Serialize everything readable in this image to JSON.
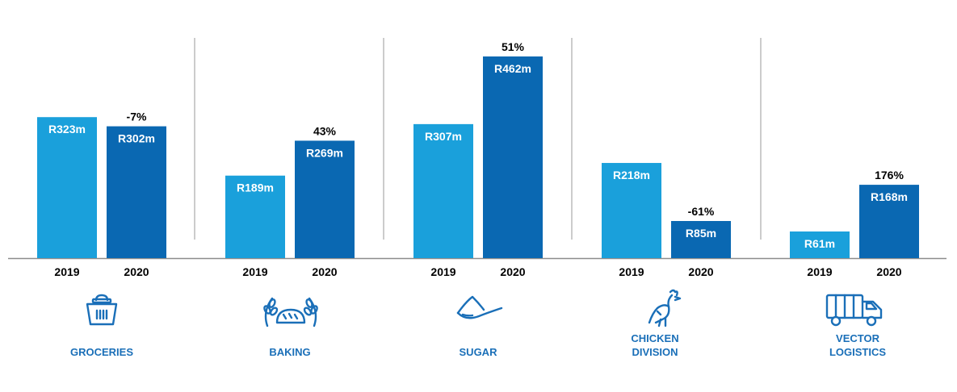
{
  "colors": {
    "y2019": "#1aa0db",
    "y2020": "#0a68b2",
    "icon": "#1a6fb8",
    "axis": "#8c8c8c"
  },
  "chart_data": {
    "type": "bar",
    "categories": [
      "GROCERIES",
      "BAKING",
      "SUGAR",
      "CHICKEN DIVISION",
      "VECTOR LOGISTICS"
    ],
    "category_lines": [
      [
        "GROCERIES"
      ],
      [
        "BAKING"
      ],
      [
        "SUGAR"
      ],
      [
        "CHICKEN",
        "DIVISION"
      ],
      [
        "VECTOR",
        "LOGISTICS"
      ]
    ],
    "series": [
      {
        "name": "2019",
        "values": [
          323,
          189,
          307,
          218,
          61
        ],
        "labels": [
          "R323m",
          "R189m",
          "R307m",
          "R218m",
          "R61m"
        ]
      },
      {
        "name": "2020",
        "values": [
          302,
          269,
          462,
          85,
          168
        ],
        "labels": [
          "R302m",
          "R269m",
          "R462m",
          "R85m",
          "R168m"
        ]
      }
    ],
    "changes": [
      "-7%",
      "43%",
      "51%",
      "-61%",
      "176%"
    ],
    "ylim": [
      0,
      470
    ],
    "icons": [
      "basket-icon",
      "wheat-bread-icon",
      "sugar-spoon-icon",
      "chicken-icon",
      "truck-icon"
    ]
  }
}
